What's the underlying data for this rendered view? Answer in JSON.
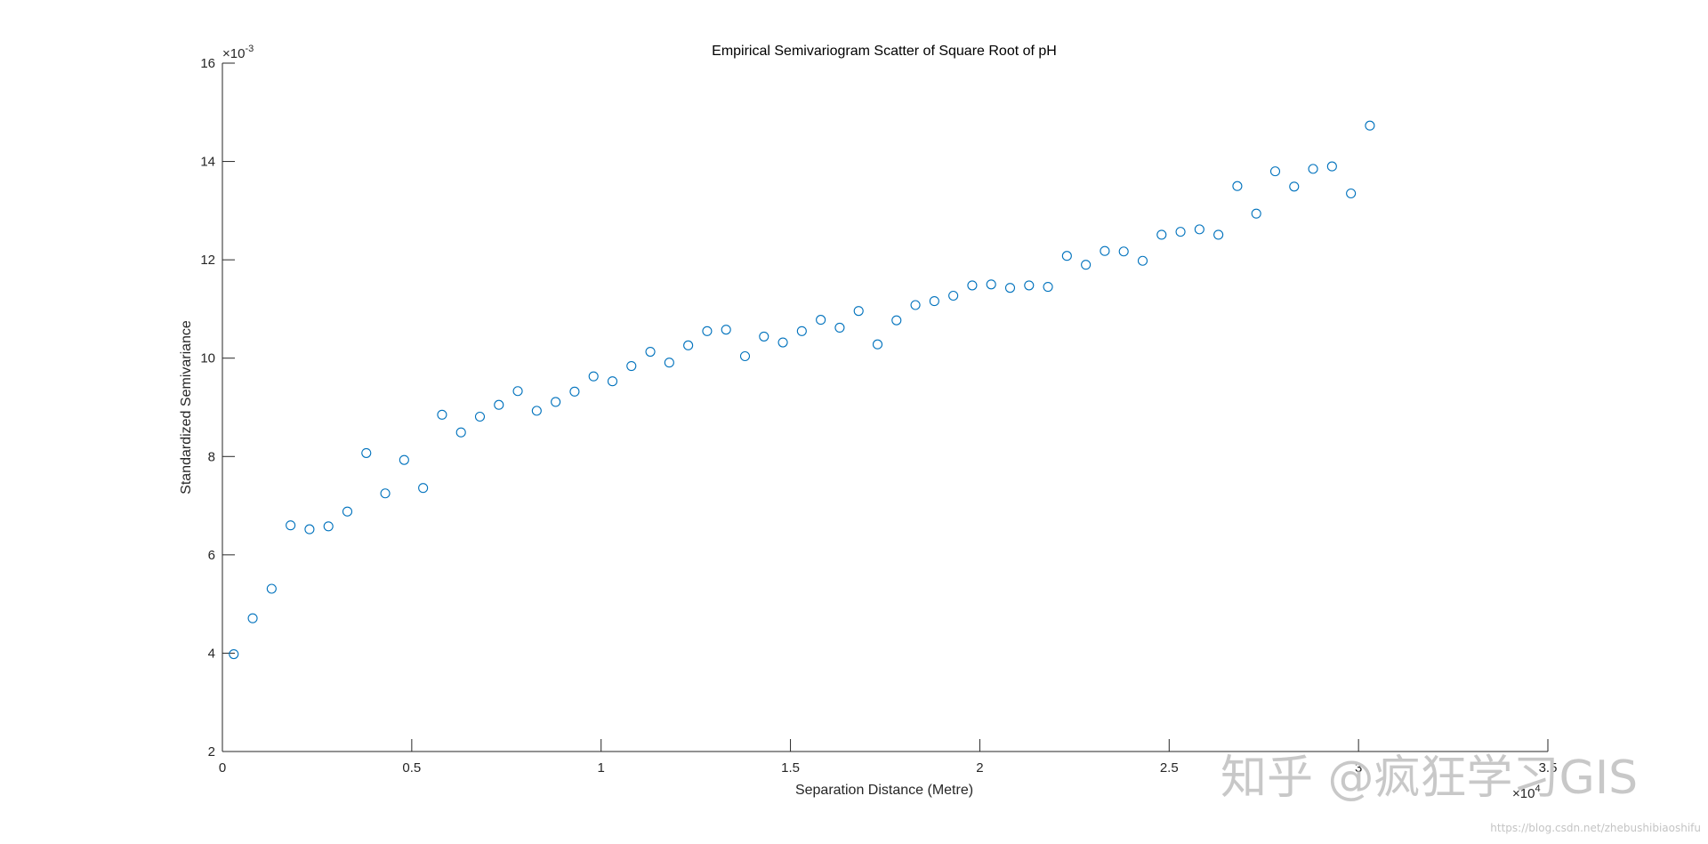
{
  "chart_data": {
    "type": "scatter",
    "title": "Empirical Semivariogram Scatter of Square Root of pH",
    "xlabel": "Separation Distance (Metre)",
    "ylabel": "Standardized Semivariance",
    "xlim": [
      0,
      35000
    ],
    "ylim": [
      0.002,
      0.016
    ],
    "x_ticks": [
      0,
      5000,
      10000,
      15000,
      20000,
      25000,
      30000,
      35000
    ],
    "x_tick_labels": [
      "0",
      "0.5",
      "1",
      "1.5",
      "2",
      "2.5",
      "3",
      "3.5"
    ],
    "y_ticks": [
      0.002,
      0.004,
      0.006,
      0.008,
      0.01,
      0.012,
      0.014,
      0.016
    ],
    "y_tick_labels": [
      "2",
      "4",
      "6",
      "8",
      "10",
      "12",
      "14",
      "16"
    ],
    "x_exponent_base": "×10",
    "x_exponent_power": "4",
    "y_exponent_base": "×10",
    "y_exponent_power": "-3",
    "grid": false,
    "marker": "open-circle",
    "marker_color": "#0072BD",
    "axis_color": "#262626",
    "series": [
      {
        "x": [
          300,
          800,
          1300,
          1800,
          2300,
          2800,
          3300,
          3800,
          4300,
          4800,
          5300,
          5800,
          6300,
          6800,
          7300,
          7800,
          8300,
          8800,
          9300,
          9800,
          10300,
          10800,
          11300,
          11800,
          12300,
          12800,
          13300,
          13800,
          14300,
          14800,
          15300,
          15800,
          16300,
          16800,
          17300,
          17800,
          18300,
          18800,
          19300,
          19800,
          20300,
          20800,
          21300,
          21800,
          22300,
          22800,
          23300,
          23800,
          24300,
          24800,
          25300,
          25800,
          26300,
          26800,
          27300,
          27800,
          28300,
          28800,
          29300,
          29800,
          30300
        ],
        "y": [
          0.00398,
          0.00471,
          0.00531,
          0.0066,
          0.00652,
          0.00658,
          0.00688,
          0.00807,
          0.00725,
          0.00793,
          0.00736,
          0.00885,
          0.00849,
          0.00881,
          0.00905,
          0.00933,
          0.00893,
          0.00911,
          0.00932,
          0.00963,
          0.00953,
          0.00984,
          0.01013,
          0.00991,
          0.01026,
          0.01055,
          0.01058,
          0.01004,
          0.01044,
          0.01032,
          0.01055,
          0.01078,
          0.01062,
          0.01096,
          0.01028,
          0.01077,
          0.01108,
          0.01116,
          0.01127,
          0.01148,
          0.0115,
          0.01143,
          0.01148,
          0.01145,
          0.01208,
          0.0119,
          0.01218,
          0.01217,
          0.01198,
          0.01251,
          0.01257,
          0.01262,
          0.01251,
          0.0135,
          0.01294,
          0.0138,
          0.01349,
          0.01385,
          0.0139,
          0.01335,
          0.01473
        ]
      }
    ]
  },
  "watermark": {
    "text": "知乎 @疯狂学习GIS",
    "url": "https://blog.csdn.net/zhebushibiaoshifu"
  }
}
